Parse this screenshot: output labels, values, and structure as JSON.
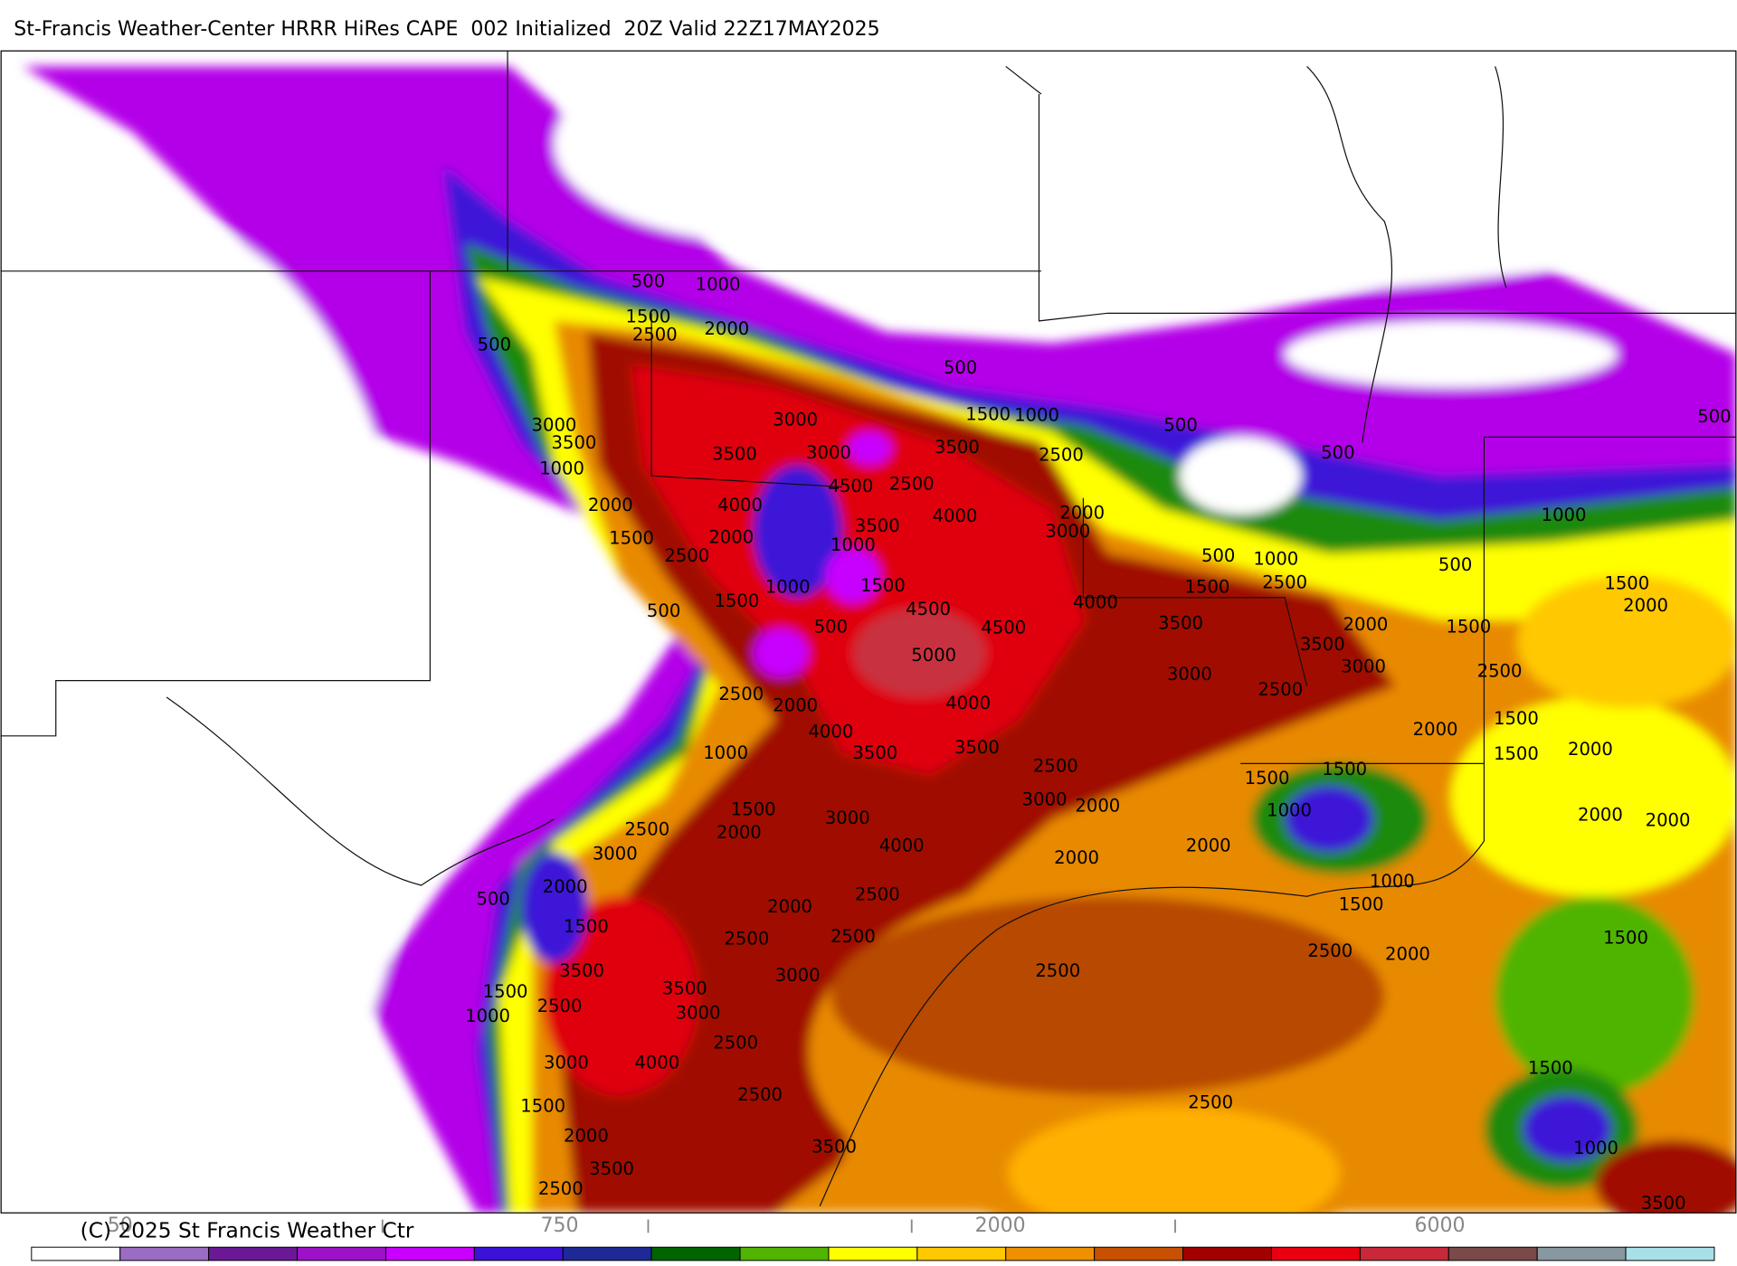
{
  "header": {
    "title": "St-Francis Weather-Center HRRR HiRes CAPE  002 Initialized  20Z Valid 22Z17MAY2025"
  },
  "contour_labels": [
    "500",
    "1000",
    "1500",
    "2500",
    "2000",
    "500",
    "500",
    "3000",
    "3500",
    "1000",
    "3000",
    "3500",
    "3000",
    "3500",
    "1500",
    "1000",
    "500",
    "500",
    "2500",
    "4500",
    "2500",
    "2000",
    "4000",
    "4000",
    "3500",
    "2000",
    "3000",
    "1500",
    "2000",
    "1000",
    "2500",
    "1000",
    "1500",
    "500",
    "1000",
    "500",
    "2500",
    "1500",
    "1500",
    "4500",
    "4000",
    "3500",
    "500",
    "500",
    "4500",
    "5000",
    "3500",
    "3000",
    "2000",
    "1500",
    "3000",
    "2500",
    "2500",
    "2500",
    "2000",
    "4000",
    "4000",
    "2000",
    "1500",
    "1500",
    "2000",
    "3500",
    "3500",
    "1000",
    "2500",
    "1500",
    "1500",
    "1000",
    "1500",
    "2000",
    "500",
    "1500",
    "2500",
    "3000",
    "2000",
    "3000",
    "2000",
    "1000",
    "2000",
    "2000",
    "3000",
    "4000",
    "2000",
    "2000",
    "2000",
    "500",
    "2500",
    "1000",
    "2000",
    "1500",
    "1500",
    "2500",
    "2500",
    "1500",
    "2500",
    "2000",
    "3500",
    "3000",
    "2500",
    "1500",
    "2500",
    "3500",
    "3000",
    "1000",
    "2500",
    "3000",
    "4000",
    "1500",
    "2500",
    "2500",
    "1500",
    "2000",
    "1000",
    "3500",
    "3500",
    "2500",
    "3500"
  ],
  "colorbar": {
    "colors": [
      "#ffffff",
      "#9b6cc4",
      "#6a1896",
      "#9c12c8",
      "#c800ff",
      "#3c12d8",
      "#1e2896",
      "#006400",
      "#50b400",
      "#ffff00",
      "#ffc800",
      "#f09000",
      "#c85000",
      "#a00000",
      "#e80010",
      "#c82838",
      "#7a4a48",
      "#8898a0",
      "#a8e0e8"
    ],
    "labels": [
      "50",
      "750",
      "2000",
      "6000"
    ]
  },
  "footer": {
    "copyright": "(C) 2025 St Francis Weather Ctr"
  }
}
